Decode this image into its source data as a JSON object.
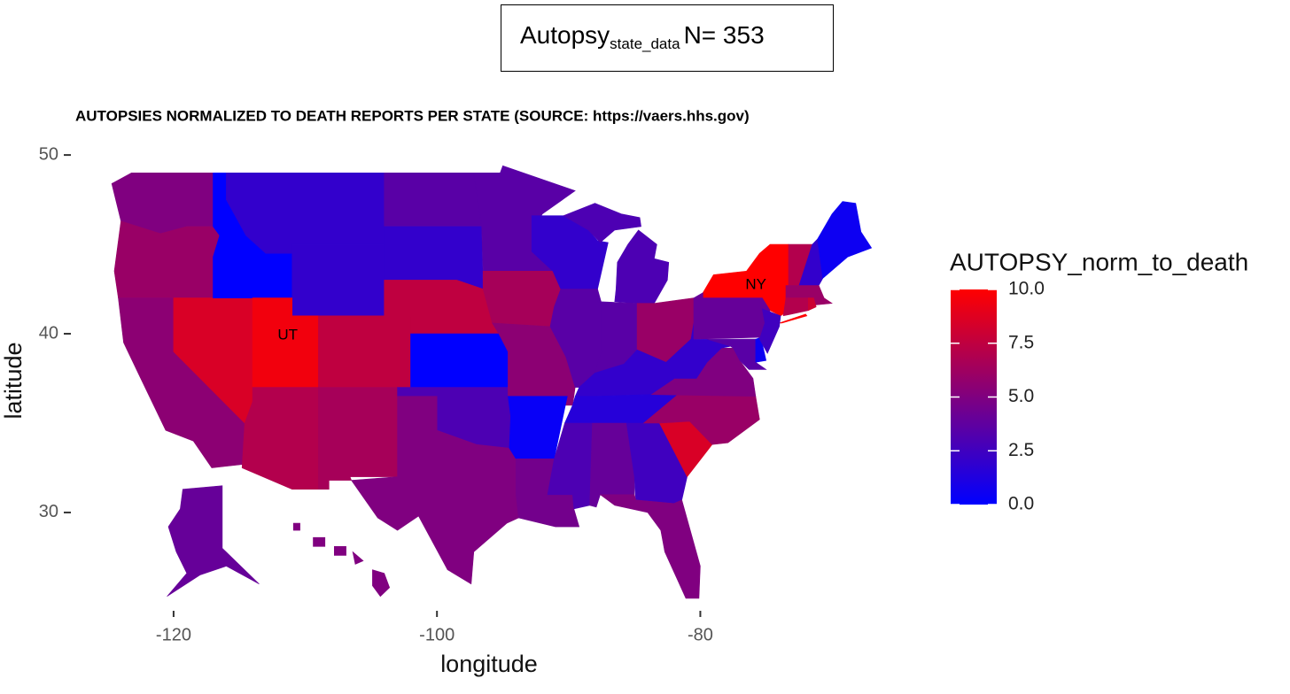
{
  "header": {
    "text": "Autopsy",
    "subscript": "state_data",
    "suffix": "N= 353"
  },
  "chart_data": {
    "type": "choropleth",
    "title": "AUTOPSIES NORMALIZED TO DEATH REPORTS PER STATE (SOURCE: https://vaers.hhs.gov)",
    "x_label": "longitude",
    "y_label": "latitude",
    "xlim": [
      -127.8,
      -65.9
    ],
    "ylim": [
      24.5,
      50.5
    ],
    "xticks": [
      -120,
      -100,
      -80
    ],
    "yticks": [
      30,
      40,
      50
    ],
    "categories": [
      null,
      null,
      null,
      null,
      null,
      null,
      null,
      "UT",
      null,
      null,
      null,
      null,
      null,
      null,
      null,
      null,
      null,
      null,
      null,
      null,
      null,
      null,
      null,
      null,
      null,
      null,
      null,
      null,
      null,
      null,
      null,
      null,
      null,
      null,
      null,
      null,
      null,
      null,
      null,
      "NY",
      null,
      null,
      null,
      null,
      null,
      null,
      null,
      null,
      null,
      null
    ],
    "values": [
      5,
      6,
      5.5,
      8.5,
      0,
      2,
      2,
      9.5,
      7.5,
      7,
      6.5,
      3.5,
      2,
      7.5,
      0,
      3,
      5,
      3.5,
      6.5,
      5.5,
      0.3,
      4.5,
      2,
      3.5,
      3,
      3.5,
      6,
      2,
      1.5,
      3,
      4,
      2.5,
      5,
      8.5,
      6,
      5,
      2,
      3.5,
      0.5,
      10,
      4,
      2.5,
      7,
      2,
      0.5,
      6,
      7,
      8,
      4,
      5
    ],
    "legend": {
      "title": "AUTOPSY_norm_to_death",
      "lim": [
        0,
        10
      ],
      "ticks": [
        {
          "value": 0,
          "label": "0.0"
        },
        2.5,
        {
          "value": 5,
          "label": "5.0"
        },
        7.5,
        {
          "value": 10,
          "label": "10.0"
        }
      ],
      "low_color": "#0000ff",
      "high_color": "#ff0000"
    }
  }
}
